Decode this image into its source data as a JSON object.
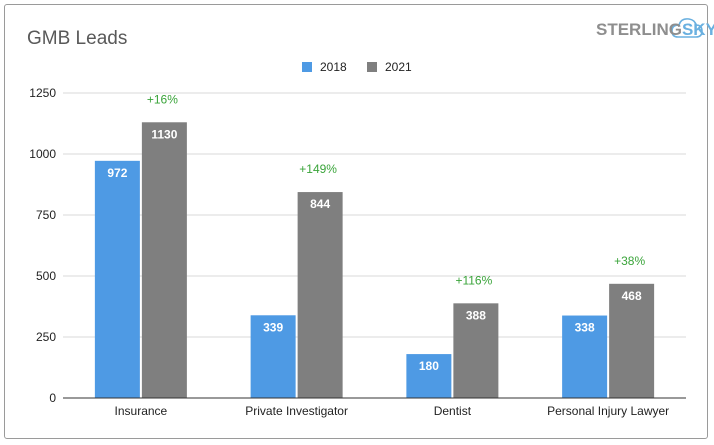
{
  "chart_data": {
    "type": "bar",
    "title": "GMB Leads",
    "categories": [
      "Insurance",
      "Private Investigator",
      "Dentist",
      "Personal Injury Lawyer"
    ],
    "series": [
      {
        "name": "2018",
        "values": [
          972,
          339,
          180,
          338
        ],
        "color": "#4e9ae4"
      },
      {
        "name": "2021",
        "values": [
          1130,
          844,
          388,
          468
        ],
        "color": "#7f7f7f"
      }
    ],
    "annotations": [
      "+16%",
      "+149%",
      "+116%",
      "+38%"
    ],
    "annotation_color": "#3aa43a",
    "yticks": [
      0,
      250,
      500,
      750,
      1000,
      1250
    ],
    "ylim": [
      0,
      1250
    ],
    "grid": true,
    "legend": "top-center"
  },
  "logo": {
    "part1": "STERLING",
    "part2": "SKY"
  }
}
